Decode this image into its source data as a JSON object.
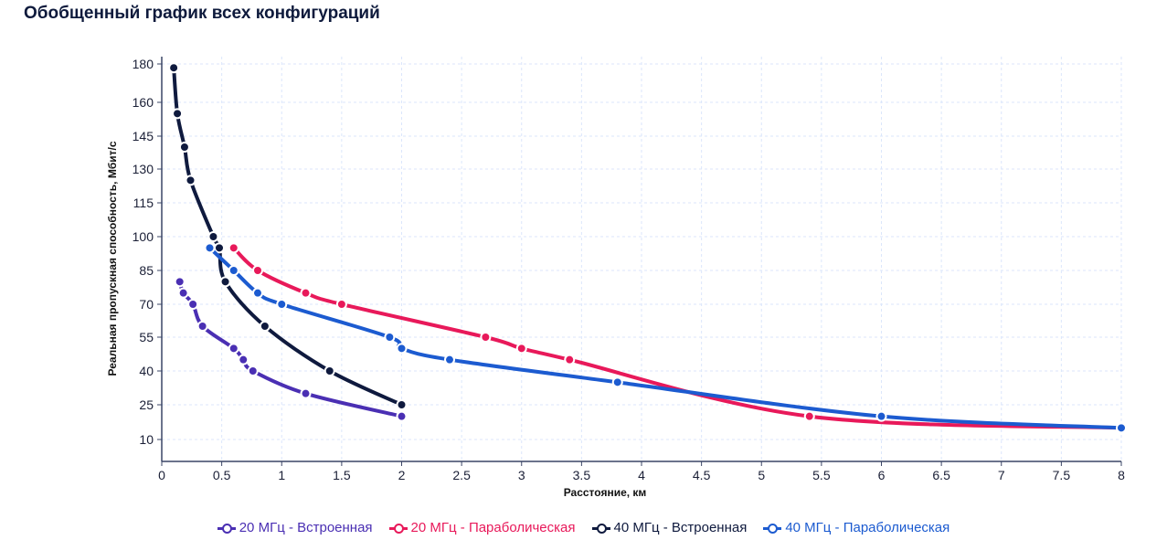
{
  "title": "Обобщенный график всех конфигураций",
  "chart_data": {
    "type": "line",
    "title": "Обобщенный график всех конфигураций",
    "xlabel": "Расстояние, км",
    "ylabel": "Реальная пропускная способность, Мбит/с",
    "xlim": [
      0,
      8
    ],
    "x_ticks": [
      "0",
      "0.5",
      "1",
      "1.5",
      "2",
      "2.5",
      "3",
      "3.5",
      "4",
      "4.5",
      "5",
      "5.5",
      "6",
      "6.5",
      "7",
      "7.5",
      "8"
    ],
    "y_ticks": [
      "10",
      "25",
      "40",
      "55",
      "70",
      "85",
      "100",
      "115",
      "130",
      "145",
      "160",
      "180"
    ],
    "grid": true,
    "legend_placement": "bottom",
    "series": [
      {
        "name": "20 МГц - Встроенная",
        "color": "#4a2fb3",
        "x": [
          0.15,
          0.18,
          0.26,
          0.34,
          0.6,
          0.68,
          0.76,
          1.2,
          2
        ],
        "y": [
          80,
          75,
          70,
          60,
          50,
          45,
          40,
          30,
          20
        ]
      },
      {
        "name": "20 МГц - Параболическая",
        "color": "#e8195a",
        "x": [
          0.6,
          0.8,
          1.2,
          1.5,
          2.7,
          3,
          3.4,
          5.4,
          8
        ],
        "y": [
          95,
          85,
          75,
          70,
          55,
          50,
          45,
          20,
          15
        ]
      },
      {
        "name": "40 МГц - Встроенная",
        "color": "#0f1a3e",
        "x": [
          0.1,
          0.13,
          0.19,
          0.24,
          0.43,
          0.48,
          0.53,
          0.86,
          1.4,
          2
        ],
        "y": [
          178,
          155,
          140,
          125,
          100,
          95,
          80,
          60,
          40,
          25
        ]
      },
      {
        "name": "40 МГц - Параболическая",
        "color": "#1c5bd0",
        "x": [
          0.4,
          0.6,
          0.8,
          1,
          1.9,
          2,
          2.4,
          3.8,
          6,
          8
        ],
        "y": [
          95,
          85,
          75,
          70,
          55,
          50,
          45,
          35,
          20,
          15
        ]
      }
    ]
  }
}
